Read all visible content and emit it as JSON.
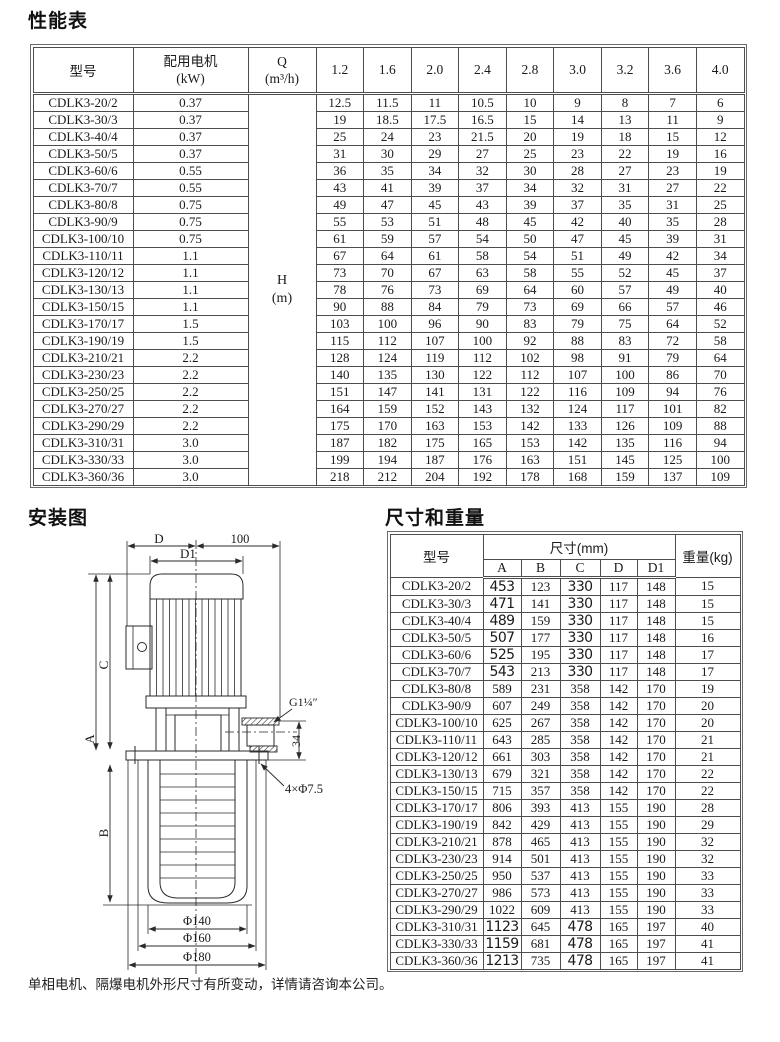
{
  "page": {
    "performance_title": "性能表",
    "installation_title": "安装图",
    "dimensions_title": "尺寸和重量",
    "footnote": "单相电机、隔爆电机外形尺寸有所变动，详情请咨询本公司。"
  },
  "performance_table": {
    "model_header": "型号",
    "motor_header_line1": "配用电机",
    "motor_header_line2": "(kW)",
    "q_header_line1": "Q",
    "q_header_line2": "(m³/h)",
    "h_label_line1": "H",
    "h_label_line2": "(m)",
    "flow_columns": [
      "1.2",
      "1.6",
      "2.0",
      "2.4",
      "2.8",
      "3.0",
      "3.2",
      "3.6",
      "4.0"
    ],
    "rows": [
      {
        "model": "CDLK3-20/2",
        "motor": "0.37",
        "h": [
          "12.5",
          "11.5",
          "11",
          "10.5",
          "10",
          "9",
          "8",
          "7",
          "6"
        ]
      },
      {
        "model": "CDLK3-30/3",
        "motor": "0.37",
        "h": [
          "19",
          "18.5",
          "17.5",
          "16.5",
          "15",
          "14",
          "13",
          "11",
          "9"
        ]
      },
      {
        "model": "CDLK3-40/4",
        "motor": "0.37",
        "h": [
          "25",
          "24",
          "23",
          "21.5",
          "20",
          "19",
          "18",
          "15",
          "12"
        ]
      },
      {
        "model": "CDLK3-50/5",
        "motor": "0.37",
        "h": [
          "31",
          "30",
          "29",
          "27",
          "25",
          "23",
          "22",
          "19",
          "16"
        ]
      },
      {
        "model": "CDLK3-60/6",
        "motor": "0.55",
        "h": [
          "36",
          "35",
          "34",
          "32",
          "30",
          "28",
          "27",
          "23",
          "19"
        ]
      },
      {
        "model": "CDLK3-70/7",
        "motor": "0.55",
        "h": [
          "43",
          "41",
          "39",
          "37",
          "34",
          "32",
          "31",
          "27",
          "22"
        ]
      },
      {
        "model": "CDLK3-80/8",
        "motor": "0.75",
        "h": [
          "49",
          "47",
          "45",
          "43",
          "39",
          "37",
          "35",
          "31",
          "25"
        ]
      },
      {
        "model": "CDLK3-90/9",
        "motor": "0.75",
        "h": [
          "55",
          "53",
          "51",
          "48",
          "45",
          "42",
          "40",
          "35",
          "28"
        ]
      },
      {
        "model": "CDLK3-100/10",
        "motor": "0.75",
        "h": [
          "61",
          "59",
          "57",
          "54",
          "50",
          "47",
          "45",
          "39",
          "31"
        ]
      },
      {
        "model": "CDLK3-110/11",
        "motor": "1.1",
        "h": [
          "67",
          "64",
          "61",
          "58",
          "54",
          "51",
          "49",
          "42",
          "34"
        ]
      },
      {
        "model": "CDLK3-120/12",
        "motor": "1.1",
        "h": [
          "73",
          "70",
          "67",
          "63",
          "58",
          "55",
          "52",
          "45",
          "37"
        ]
      },
      {
        "model": "CDLK3-130/13",
        "motor": "1.1",
        "h": [
          "78",
          "76",
          "73",
          "69",
          "64",
          "60",
          "57",
          "49",
          "40"
        ]
      },
      {
        "model": "CDLK3-150/15",
        "motor": "1.1",
        "h": [
          "90",
          "88",
          "84",
          "79",
          "73",
          "69",
          "66",
          "57",
          "46"
        ]
      },
      {
        "model": "CDLK3-170/17",
        "motor": "1.5",
        "h": [
          "103",
          "100",
          "96",
          "90",
          "83",
          "79",
          "75",
          "64",
          "52"
        ]
      },
      {
        "model": "CDLK3-190/19",
        "motor": "1.5",
        "h": [
          "115",
          "112",
          "107",
          "100",
          "92",
          "88",
          "83",
          "72",
          "58"
        ]
      },
      {
        "model": "CDLK3-210/21",
        "motor": "2.2",
        "h": [
          "128",
          "124",
          "119",
          "112",
          "102",
          "98",
          "91",
          "79",
          "64"
        ]
      },
      {
        "model": "CDLK3-230/23",
        "motor": "2.2",
        "h": [
          "140",
          "135",
          "130",
          "122",
          "112",
          "107",
          "100",
          "86",
          "70"
        ]
      },
      {
        "model": "CDLK3-250/25",
        "motor": "2.2",
        "h": [
          "151",
          "147",
          "141",
          "131",
          "122",
          "116",
          "109",
          "94",
          "76"
        ]
      },
      {
        "model": "CDLK3-270/27",
        "motor": "2.2",
        "h": [
          "164",
          "159",
          "152",
          "143",
          "132",
          "124",
          "117",
          "101",
          "82"
        ]
      },
      {
        "model": "CDLK3-290/29",
        "motor": "2.2",
        "h": [
          "175",
          "170",
          "163",
          "153",
          "142",
          "133",
          "126",
          "109",
          "88"
        ]
      },
      {
        "model": "CDLK3-310/31",
        "motor": "3.0",
        "h": [
          "187",
          "182",
          "175",
          "165",
          "153",
          "142",
          "135",
          "116",
          "94"
        ]
      },
      {
        "model": "CDLK3-330/33",
        "motor": "3.0",
        "h": [
          "199",
          "194",
          "187",
          "176",
          "163",
          "151",
          "145",
          "125",
          "100"
        ]
      },
      {
        "model": "CDLK3-360/36",
        "motor": "3.0",
        "h": [
          "218",
          "212",
          "204",
          "192",
          "178",
          "168",
          "159",
          "137",
          "109"
        ]
      }
    ]
  },
  "dimensions_table": {
    "model_header": "型号",
    "size_header": "尺寸(mm)",
    "weight_header": "重量(kg)",
    "dim_columns": [
      "A",
      "B",
      "C",
      "D",
      "D1"
    ],
    "rows": [
      {
        "model": "CDLK3-20/2",
        "dims": [
          "453",
          "123",
          "330",
          "117",
          "148"
        ],
        "weight": "15",
        "alt": true
      },
      {
        "model": "CDLK3-30/3",
        "dims": [
          "471",
          "141",
          "330",
          "117",
          "148"
        ],
        "weight": "15",
        "alt": true
      },
      {
        "model": "CDLK3-40/4",
        "dims": [
          "489",
          "159",
          "330",
          "117",
          "148"
        ],
        "weight": "15",
        "alt": true
      },
      {
        "model": "CDLK3-50/5",
        "dims": [
          "507",
          "177",
          "330",
          "117",
          "148"
        ],
        "weight": "16",
        "alt": true
      },
      {
        "model": "CDLK3-60/6",
        "dims": [
          "525",
          "195",
          "330",
          "117",
          "148"
        ],
        "weight": "17",
        "alt": true
      },
      {
        "model": "CDLK3-70/7",
        "dims": [
          "543",
          "213",
          "330",
          "117",
          "148"
        ],
        "weight": "17",
        "alt": true
      },
      {
        "model": "CDLK3-80/8",
        "dims": [
          "589",
          "231",
          "358",
          "142",
          "170"
        ],
        "weight": "19",
        "alt": false
      },
      {
        "model": "CDLK3-90/9",
        "dims": [
          "607",
          "249",
          "358",
          "142",
          "170"
        ],
        "weight": "20",
        "alt": false
      },
      {
        "model": "CDLK3-100/10",
        "dims": [
          "625",
          "267",
          "358",
          "142",
          "170"
        ],
        "weight": "20",
        "alt": false
      },
      {
        "model": "CDLK3-110/11",
        "dims": [
          "643",
          "285",
          "358",
          "142",
          "170"
        ],
        "weight": "21",
        "alt": false
      },
      {
        "model": "CDLK3-120/12",
        "dims": [
          "661",
          "303",
          "358",
          "142",
          "170"
        ],
        "weight": "21",
        "alt": false
      },
      {
        "model": "CDLK3-130/13",
        "dims": [
          "679",
          "321",
          "358",
          "142",
          "170"
        ],
        "weight": "22",
        "alt": false
      },
      {
        "model": "CDLK3-150/15",
        "dims": [
          "715",
          "357",
          "358",
          "142",
          "170"
        ],
        "weight": "22",
        "alt": false
      },
      {
        "model": "CDLK3-170/17",
        "dims": [
          "806",
          "393",
          "413",
          "155",
          "190"
        ],
        "weight": "28",
        "alt": false
      },
      {
        "model": "CDLK3-190/19",
        "dims": [
          "842",
          "429",
          "413",
          "155",
          "190"
        ],
        "weight": "29",
        "alt": false
      },
      {
        "model": "CDLK3-210/21",
        "dims": [
          "878",
          "465",
          "413",
          "155",
          "190"
        ],
        "weight": "32",
        "alt": false
      },
      {
        "model": "CDLK3-230/23",
        "dims": [
          "914",
          "501",
          "413",
          "155",
          "190"
        ],
        "weight": "32",
        "alt": false
      },
      {
        "model": "CDLK3-250/25",
        "dims": [
          "950",
          "537",
          "413",
          "155",
          "190"
        ],
        "weight": "33",
        "alt": false
      },
      {
        "model": "CDLK3-270/27",
        "dims": [
          "986",
          "573",
          "413",
          "155",
          "190"
        ],
        "weight": "33",
        "alt": false
      },
      {
        "model": "CDLK3-290/29",
        "dims": [
          "1022",
          "609",
          "413",
          "155",
          "190"
        ],
        "weight": "33",
        "alt": false
      },
      {
        "model": "CDLK3-310/31",
        "dims": [
          "1123",
          "645",
          "478",
          "165",
          "197"
        ],
        "weight": "40",
        "alt": true
      },
      {
        "model": "CDLK3-330/33",
        "dims": [
          "1159",
          "681",
          "478",
          "165",
          "197"
        ],
        "weight": "41",
        "alt": true
      },
      {
        "model": "CDLK3-360/36",
        "dims": [
          "1213",
          "735",
          "478",
          "165",
          "197"
        ],
        "weight": "41",
        "alt": true
      }
    ]
  },
  "diagram": {
    "labels": {
      "d": "D",
      "hundred": "100",
      "d1": "D1",
      "a": "A",
      "b": "B",
      "c": "C",
      "thread": "G1¼″",
      "offset34": "34",
      "holes": "4×Φ7.5",
      "phi140": "Φ140",
      "phi160": "Φ160",
      "phi180": "Φ180"
    }
  }
}
